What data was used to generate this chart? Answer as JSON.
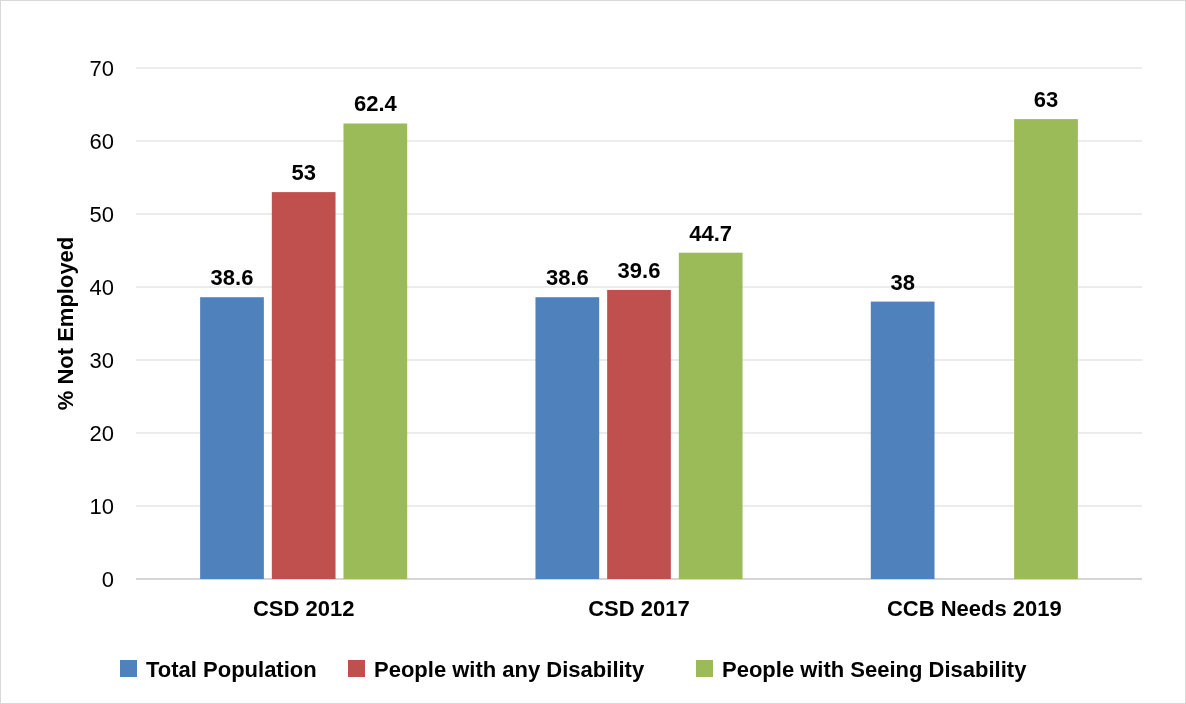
{
  "chart_data": {
    "type": "bar",
    "ylabel": "% Not Employed",
    "categories": [
      "CSD 2012",
      "CSD 2017",
      "CCB Needs 2019"
    ],
    "series": [
      {
        "name": "Total Population",
        "color": "#4f81bd",
        "values": [
          38.6,
          38.6,
          38
        ]
      },
      {
        "name": "People with any Disability",
        "color": "#c0504d",
        "values": [
          53,
          39.6,
          null
        ]
      },
      {
        "name": "People with Seeing Disability",
        "color": "#9bbb59",
        "values": [
          62.4,
          44.7,
          63
        ]
      }
    ],
    "ylim": [
      0,
      70
    ],
    "yticks": [
      0,
      10,
      20,
      30,
      40,
      50,
      60,
      70
    ],
    "grid": "y",
    "legend": "bottom",
    "data_labels": true
  }
}
